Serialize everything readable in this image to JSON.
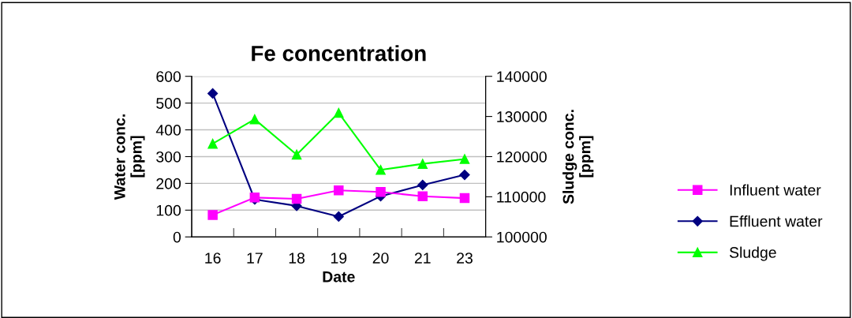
{
  "chart_data": {
    "type": "line",
    "title": "Fe concentration",
    "xlabel": "Date",
    "ylabel": "Water conc.\n[ppm]",
    "y2label": "Sludge conc.\n[ppm]",
    "categories": [
      "16",
      "17",
      "18",
      "19",
      "20",
      "21",
      "23"
    ],
    "series": [
      {
        "name": "Influent water",
        "color": "#ff00ff",
        "marker": "square",
        "values": [
          82,
          147,
          142,
          174,
          168,
          152,
          145
        ]
      },
      {
        "name": "Effluent water",
        "color": "#000080",
        "marker": "diamond",
        "values": [
          536,
          140,
          116,
          76,
          152,
          194,
          232
        ]
      },
      {
        "name": "Sludge",
        "color": "#00ff00",
        "marker": "triangle",
        "axis": "y2",
        "values": [
          123200,
          129300,
          120500,
          130900,
          116700,
          118200,
          119400
        ]
      }
    ],
    "ylim": [
      0,
      600
    ],
    "yticks": [
      0,
      100,
      200,
      300,
      400,
      500,
      600
    ],
    "y2lim": [
      100000,
      140000
    ],
    "y2ticks": [
      100000,
      110000,
      120000,
      130000,
      140000
    ],
    "grid": "y",
    "legend": "right",
    "line_style": "solid"
  }
}
